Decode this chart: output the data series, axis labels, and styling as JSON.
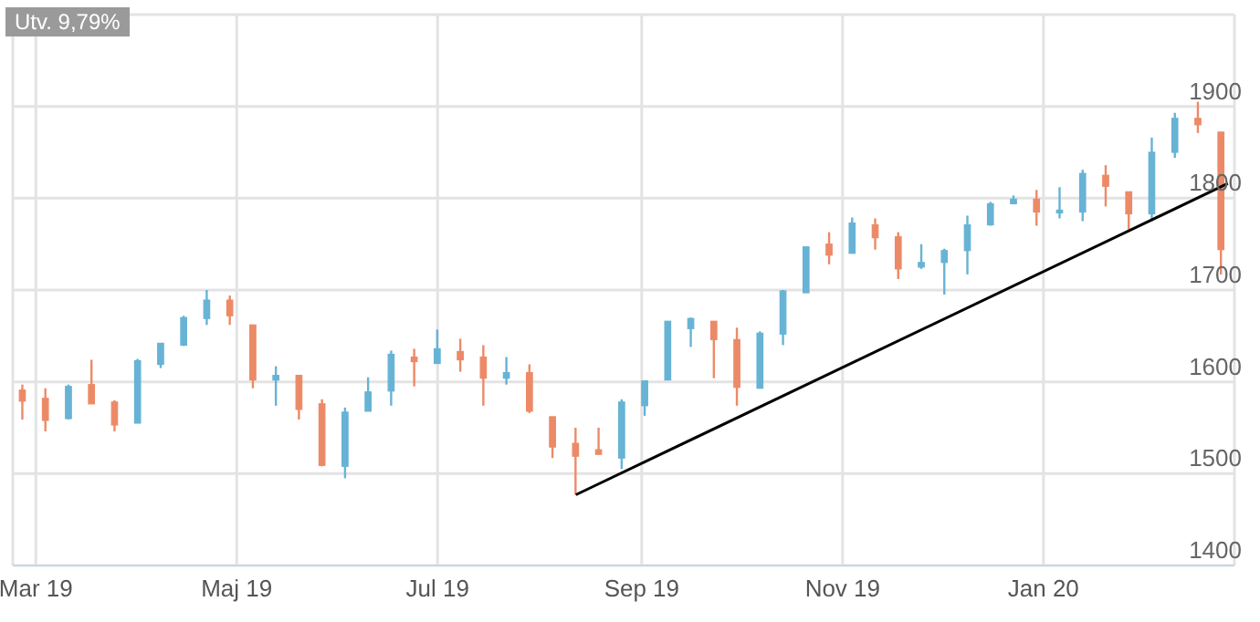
{
  "chart_data": {
    "type": "candlestick",
    "annotations": [
      "Utv. 9,79%"
    ],
    "x": [
      "2019-02-25",
      "2019-03-04",
      "2019-03-11",
      "2019-03-18",
      "2019-03-25",
      "2019-04-01",
      "2019-04-08",
      "2019-04-15",
      "2019-04-22",
      "2019-04-29",
      "2019-05-06",
      "2019-05-13",
      "2019-05-20",
      "2019-05-27",
      "2019-06-03",
      "2019-06-10",
      "2019-06-17",
      "2019-06-24",
      "2019-07-01",
      "2019-07-08",
      "2019-07-15",
      "2019-07-22",
      "2019-07-29",
      "2019-08-05",
      "2019-08-12",
      "2019-08-19",
      "2019-08-26",
      "2019-09-02",
      "2019-09-09",
      "2019-09-16",
      "2019-09-23",
      "2019-09-30",
      "2019-10-07",
      "2019-10-14",
      "2019-10-21",
      "2019-10-28",
      "2019-11-04",
      "2019-11-11",
      "2019-11-18",
      "2019-11-25",
      "2019-12-02",
      "2019-12-09",
      "2019-12-16",
      "2019-12-23",
      "2019-12-30",
      "2020-01-06",
      "2020-01-13",
      "2020-01-20",
      "2020-01-27",
      "2020-02-03",
      "2020-02-10",
      "2020-02-17",
      "2020-02-24"
    ],
    "ohlc": [
      [
        1591,
        1597,
        1559,
        1579
      ],
      [
        1582,
        1593,
        1546,
        1558
      ],
      [
        1560,
        1597,
        1559,
        1595
      ],
      [
        1597,
        1624,
        1576,
        1576
      ],
      [
        1578,
        1580,
        1546,
        1553
      ],
      [
        1555,
        1625,
        1555,
        1623
      ],
      [
        1619,
        1642,
        1615,
        1642
      ],
      [
        1640,
        1672,
        1639,
        1670
      ],
      [
        1669,
        1700,
        1662,
        1689
      ],
      [
        1689,
        1694,
        1662,
        1672
      ],
      [
        1662,
        1662,
        1593,
        1602
      ],
      [
        1602,
        1617,
        1574,
        1607
      ],
      [
        1607,
        1607,
        1559,
        1570
      ],
      [
        1576,
        1581,
        1508,
        1509
      ],
      [
        1508,
        1572,
        1495,
        1567
      ],
      [
        1568,
        1605,
        1568,
        1589
      ],
      [
        1590,
        1634,
        1574,
        1630
      ],
      [
        1627,
        1636,
        1595,
        1622
      ],
      [
        1620,
        1657,
        1620,
        1636
      ],
      [
        1633,
        1647,
        1611,
        1624
      ],
      [
        1627,
        1640,
        1574,
        1604
      ],
      [
        1604,
        1627,
        1597,
        1610
      ],
      [
        1610,
        1619,
        1566,
        1568
      ],
      [
        1562,
        1562,
        1517,
        1529
      ],
      [
        1533,
        1550,
        1477,
        1519
      ],
      [
        1526,
        1550,
        1521,
        1521
      ],
      [
        1517,
        1581,
        1505,
        1578
      ],
      [
        1574,
        1601,
        1563,
        1601
      ],
      [
        1602,
        1666,
        1602,
        1666
      ],
      [
        1658,
        1670,
        1638,
        1669
      ],
      [
        1666,
        1666,
        1604,
        1646
      ],
      [
        1646,
        1659,
        1574,
        1594
      ],
      [
        1593,
        1655,
        1593,
        1653
      ],
      [
        1652,
        1700,
        1640,
        1699
      ],
      [
        1697,
        1747,
        1697,
        1747
      ],
      [
        1750,
        1763,
        1728,
        1738
      ],
      [
        1740,
        1779,
        1740,
        1773
      ],
      [
        1771,
        1778,
        1744,
        1757
      ],
      [
        1758,
        1763,
        1712,
        1723
      ],
      [
        1725,
        1750,
        1723,
        1730
      ],
      [
        1730,
        1745,
        1695,
        1743
      ],
      [
        1743,
        1781,
        1717,
        1771
      ],
      [
        1771,
        1796,
        1770,
        1794
      ],
      [
        1794,
        1803,
        1794,
        1799
      ],
      [
        1799,
        1809,
        1770,
        1785
      ],
      [
        1785,
        1812,
        1778,
        1787
      ],
      [
        1785,
        1831,
        1775,
        1827
      ],
      [
        1825,
        1836,
        1791,
        1813
      ],
      [
        1807,
        1807,
        1766,
        1783
      ],
      [
        1783,
        1866,
        1775,
        1850
      ],
      [
        1850,
        1893,
        1844,
        1887
      ],
      [
        1887,
        1905,
        1871,
        1880
      ],
      [
        1872,
        1872,
        1717,
        1744
      ]
    ],
    "colors": [
      "#ec8a67",
      "#ec8a67",
      "#67b3d5",
      "#ec8a67",
      "#ec8a67",
      "#67b3d5",
      "#67b3d5",
      "#67b3d5",
      "#67b3d5",
      "#ec8a67",
      "#ec8a67",
      "#67b3d5",
      "#ec8a67",
      "#ec8a67",
      "#67b3d5",
      "#67b3d5",
      "#67b3d5",
      "#ec8a67",
      "#67b3d5",
      "#ec8a67",
      "#ec8a67",
      "#67b3d5",
      "#ec8a67",
      "#ec8a67",
      "#ec8a67",
      "#ec8a67",
      "#67b3d5",
      "#67b3d5",
      "#67b3d5",
      "#67b3d5",
      "#ec8a67",
      "#ec8a67",
      "#67b3d5",
      "#67b3d5",
      "#67b3d5",
      "#ec8a67",
      "#67b3d5",
      "#ec8a67",
      "#ec8a67",
      "#67b3d5",
      "#67b3d5",
      "#67b3d5",
      "#67b3d5",
      "#67b3d5",
      "#ec8a67",
      "#67b3d5",
      "#67b3d5",
      "#ec8a67",
      "#ec8a67",
      "#67b3d5",
      "#67b3d5",
      "#ec8a67",
      "#ec8a67"
    ],
    "series": [
      {
        "type": "line",
        "x": [
          "2019-08-12",
          "2020-02-26"
        ],
        "values": [
          1477,
          1816
        ],
        "color": "#000000"
      }
    ],
    "marker": "none",
    "xlim": [
      "2019-02-22",
      "2020-02-28"
    ],
    "xticks": [
      {
        "value": "2019-03-01",
        "label": "Mar 19"
      },
      {
        "value": "2019-05-01",
        "label": "Maj 19"
      },
      {
        "value": "2019-07-01",
        "label": "Jul 19"
      },
      {
        "value": "2019-09-01",
        "label": "Sep 19"
      },
      {
        "value": "2019-11-01",
        "label": "Nov 19"
      },
      {
        "value": "2020-01-01",
        "label": "Jan 20"
      }
    ],
    "ylim": [
      1400,
      2000
    ],
    "yticks": [
      1400,
      1500,
      1600,
      1700,
      1800,
      1900,
      {
        "value": 2000,
        "label": null
      }
    ],
    "grid": true
  }
}
